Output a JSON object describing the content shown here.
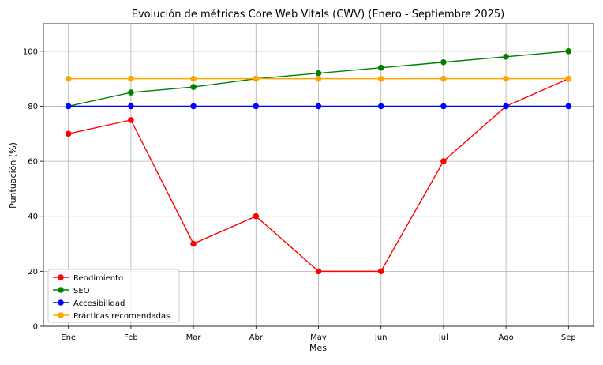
{
  "chart_data": {
    "type": "line",
    "title": "Evolución de métricas Core Web Vitals (CWV) (Enero - Septiembre 2025)",
    "xlabel": "Mes",
    "ylabel": "Puntuación (%)",
    "categories": [
      "Ene",
      "Feb",
      "Mar",
      "Abr",
      "May",
      "Jun",
      "Jul",
      "Ago",
      "Sep"
    ],
    "ylim": [
      0,
      110
    ],
    "yticks": [
      0,
      20,
      40,
      60,
      80,
      100
    ],
    "grid": true,
    "legend_position": "lower-left",
    "marker": "circle",
    "series": [
      {
        "name": "Rendimiento",
        "color": "#ff0000",
        "values": [
          70,
          75,
          30,
          40,
          20,
          20,
          60,
          80,
          90
        ]
      },
      {
        "name": "SEO",
        "color": "#008000",
        "values": [
          80,
          85,
          87,
          90,
          92,
          94,
          96,
          98,
          100
        ]
      },
      {
        "name": "Accesibilidad",
        "color": "#0000ff",
        "values": [
          80,
          80,
          80,
          80,
          80,
          80,
          80,
          80,
          80
        ]
      },
      {
        "name": "Prácticas recomendadas",
        "color": "#ffa500",
        "values": [
          90,
          90,
          90,
          90,
          90,
          90,
          90,
          90,
          90
        ]
      }
    ]
  }
}
